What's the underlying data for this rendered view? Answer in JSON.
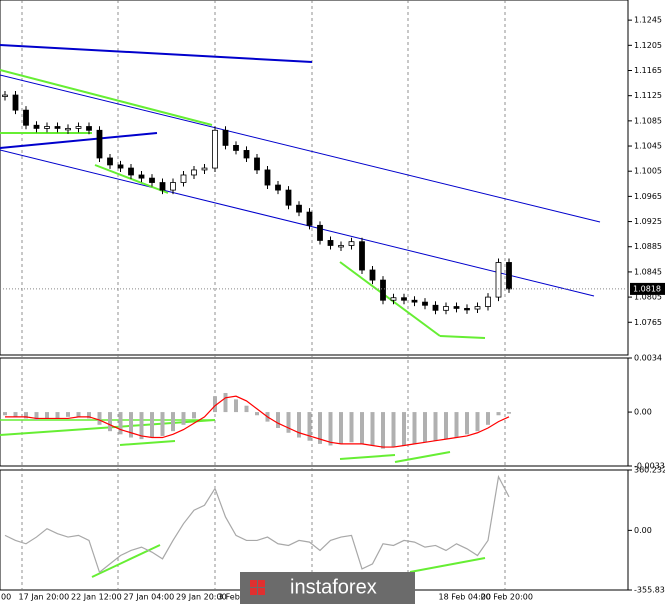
{
  "watermark": "instaforex",
  "chart_data": [
    {
      "type": "candlestick",
      "color": "#000000",
      "categories": [
        "00",
        null,
        null,
        "17 Jan 20:00",
        null,
        null,
        null,
        null,
        "22 Jan 12:00",
        null,
        null,
        null,
        null,
        "27 Jan 04:00",
        null,
        null,
        null,
        null,
        "29 Jan 20:00",
        null,
        null,
        null,
        "3 Feb",
        null,
        null,
        null,
        null,
        null,
        null,
        null,
        null,
        null,
        null,
        null,
        null,
        null,
        null,
        null,
        null,
        null,
        null,
        null,
        null,
        "18 Feb 04:00",
        null,
        null,
        null,
        "20 Feb 20:00",
        null
      ],
      "values": [
        1.1126,
        1.1102,
        1.1078,
        1.1073,
        1.1076,
        1.1073,
        1.1073,
        1.1076,
        1.107,
        1.1026,
        1.1015,
        1.101,
        1.0999,
        1.0994,
        1.0987,
        1.0975,
        1.0987,
        1.0999,
        1.1007,
        1.101,
        1.107,
        1.1046,
        1.1038,
        1.1026,
        1.1007,
        1.0983,
        1.0975,
        1.0951,
        1.094,
        1.0919,
        1.0895,
        1.0887,
        1.0887,
        1.0893,
        1.0848,
        1.0832,
        1.08,
        1.0804,
        1.08,
        1.0797,
        1.0792,
        1.0784,
        1.079,
        1.0787,
        1.0786,
        1.079,
        1.0805,
        1.086,
        1.0818
      ],
      "ylim": [
        1.0713,
        1.1277
      ],
      "yticks": [
        1.1245,
        1.1205,
        1.1165,
        1.1125,
        1.1085,
        1.1045,
        1.1005,
        1.0965,
        1.0925,
        1.0885,
        1.0845,
        1.0805,
        1.0765
      ]
    },
    {
      "type": "macd",
      "series": [
        {
          "color": "#b0b0b0",
          "values": [
            -0.0002,
            -0.0003,
            -0.0004,
            -0.0005,
            -0.0004,
            -0.0004,
            -0.0003,
            -0.0003,
            -0.0004,
            -0.0008,
            -0.0012,
            -0.0014,
            -0.0016,
            -0.0017,
            -0.0016,
            -0.0015,
            -0.0012,
            -0.0008,
            -0.0004,
            0,
            0.001,
            0.0012,
            0.0008,
            0.0004,
            -0.0002,
            -0.0006,
            -0.001,
            -0.0013,
            -0.0016,
            -0.0018,
            -0.002,
            -0.0021,
            -0.002,
            -0.0019,
            -0.002,
            -0.0021,
            -0.0023,
            -0.0022,
            -0.0021,
            -0.002,
            -0.0019,
            -0.0018,
            -0.0017,
            -0.0016,
            -0.0014,
            -0.0012,
            -0.0008,
            -0.0002,
            -0.0001
          ]
        },
        {
          "color": "#ff0000",
          "values": [
            -0.0003,
            -0.0003,
            -0.0003,
            -0.0004,
            -0.0004,
            -0.0004,
            -0.0004,
            -0.0003,
            -0.0003,
            -0.0005,
            -0.0008,
            -0.0011,
            -0.0013,
            -0.0015,
            -0.0016,
            -0.0016,
            -0.0014,
            -0.0011,
            -0.0007,
            -0.0003,
            0.0004,
            0.0009,
            0.001,
            0.0007,
            0.0002,
            -0.0003,
            -0.0007,
            -0.001,
            -0.0013,
            -0.0015,
            -0.0017,
            -0.0019,
            -0.002,
            -0.002,
            -0.002,
            -0.0021,
            -0.0022,
            -0.0022,
            -0.0021,
            -0.002,
            -0.0019,
            -0.0018,
            -0.0017,
            -0.0016,
            -0.0015,
            -0.0013,
            -0.001,
            -0.0006,
            -0.0003
          ]
        }
      ],
      "ylim": [
        -0.00339,
        0.0034
      ],
      "yticks": [
        0.0034,
        {
          "value": 0,
          "label": "0.00"
        },
        -0.00339
      ]
    },
    {
      "type": "line",
      "color": "#a8a8a8",
      "values": [
        -30,
        -60,
        -80,
        -40,
        10,
        -20,
        -40,
        -30,
        -60,
        -250,
        -200,
        -150,
        -120,
        -100,
        -130,
        -170,
        -60,
        40,
        120,
        150,
        250,
        80,
        -30,
        -60,
        -60,
        -40,
        -80,
        -90,
        -60,
        -70,
        -120,
        -60,
        -40,
        -30,
        -230,
        -200,
        -80,
        -90,
        -60,
        -70,
        -100,
        -90,
        -120,
        -80,
        -110,
        -150,
        -60,
        320,
        200
      ],
      "ylim": [
        -355.8331,
        360.2329
      ],
      "yticks": [
        360.2329,
        {
          "value": 0,
          "label": "0.00"
        },
        -355.8331
      ]
    }
  ]
}
